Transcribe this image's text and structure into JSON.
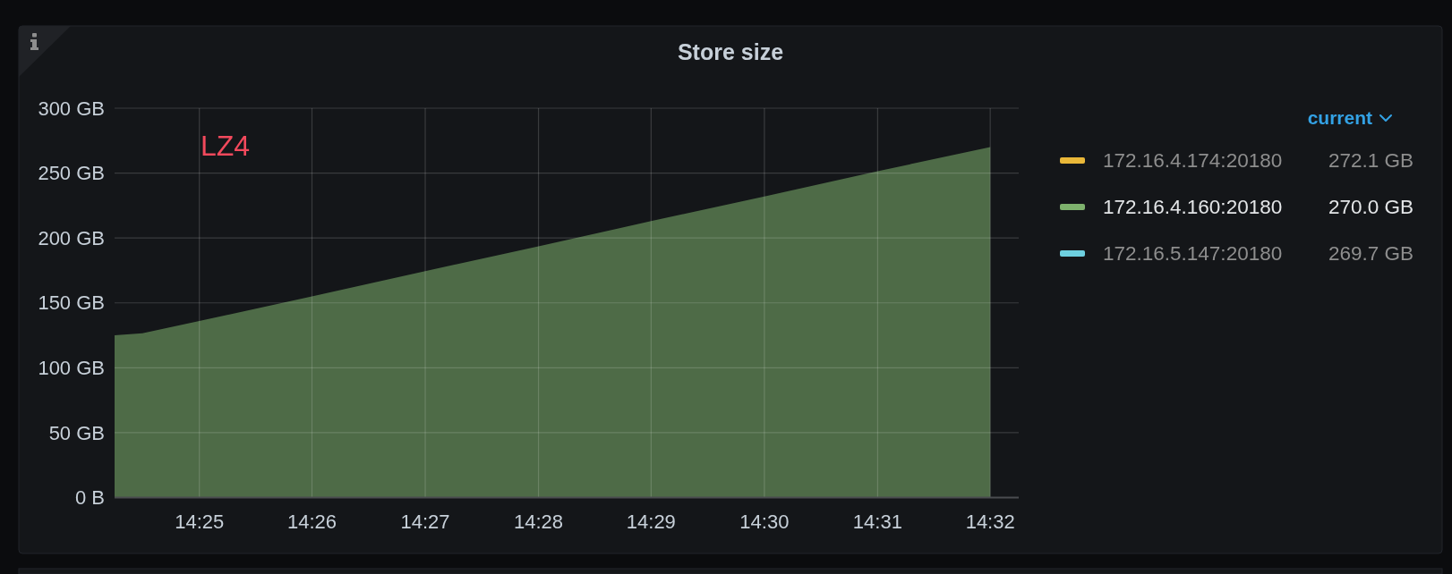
{
  "chart_data": {
    "type": "area",
    "title": "Store size",
    "x": [
      14.4042,
      14.4083,
      14.4167,
      14.4333,
      14.45,
      14.4667,
      14.4833,
      14.5,
      14.5167,
      14.5333
    ],
    "series": [
      {
        "name": "172.16.4.174:20180",
        "color": "#eab839",
        "values": [
          null,
          null,
          null,
          null,
          null,
          null,
          null,
          null,
          null,
          null
        ]
      },
      {
        "name": "172.16.4.160:20180",
        "color": "#7eb26d",
        "values": [
          125,
          126.5,
          136,
          155,
          174.5,
          193.5,
          213,
          232,
          251.5,
          270
        ]
      },
      {
        "name": "172.16.5.147:20180",
        "color": "#6ed0e0",
        "values": [
          null,
          null,
          null,
          null,
          null,
          null,
          null,
          null,
          null,
          null
        ]
      }
    ],
    "xlim": [
      14.4042,
      14.5375
    ],
    "xticks": [
      {
        "value": 14.4167,
        "label": "14:25"
      },
      {
        "value": 14.4333,
        "label": "14:26"
      },
      {
        "value": 14.45,
        "label": "14:27"
      },
      {
        "value": 14.4667,
        "label": "14:28"
      },
      {
        "value": 14.4833,
        "label": "14:29"
      },
      {
        "value": 14.5,
        "label": "14:30"
      },
      {
        "value": 14.5167,
        "label": "14:31"
      },
      {
        "value": 14.5333,
        "label": "14:32"
      }
    ],
    "ylim": [
      0,
      300
    ],
    "yticks": [
      {
        "value": 0,
        "label": "0 B"
      },
      {
        "value": 50,
        "label": "50 GB"
      },
      {
        "value": 100,
        "label": "100 GB"
      },
      {
        "value": 150,
        "label": "150 GB"
      },
      {
        "value": 200,
        "label": "200 GB"
      },
      {
        "value": 250,
        "label": "250 GB"
      },
      {
        "value": 300,
        "label": "300 GB"
      }
    ],
    "grid": true,
    "legend": "right",
    "legend_title": "current",
    "annotations": [
      "LZ4",
      "272.1 GB",
      "270.0 GB",
      "269.7 GB"
    ]
  }
}
